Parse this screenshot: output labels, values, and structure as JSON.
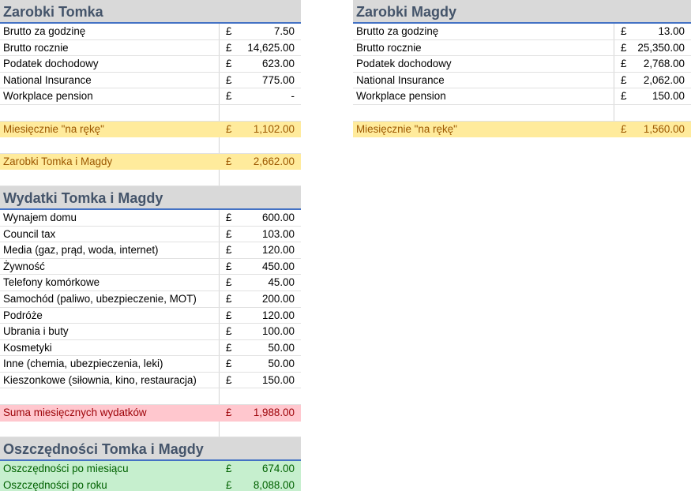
{
  "colors": {
    "header_bg": "#d9d9d9",
    "header_text": "#44546a",
    "accent": "#4472c4",
    "yellow_bg": "#ffeb9c",
    "yellow_text": "#9c5700",
    "pink_bg": "#ffc7ce",
    "pink_text": "#9c0006",
    "green_bg": "#c6efce",
    "green_text": "#006100"
  },
  "left": {
    "sections": [
      {
        "title": "Zarobki Tomka",
        "rows": [
          {
            "label": "Brutto za godzinę",
            "currency": "£",
            "value": "7.50"
          },
          {
            "label": "Brutto rocznie",
            "currency": "£",
            "value": "14,625.00"
          },
          {
            "label": "Podatek dochodowy",
            "currency": "£",
            "value": "623.00"
          },
          {
            "label": "National Insurance",
            "currency": "£",
            "value": "775.00"
          },
          {
            "label": "Workplace pension",
            "currency": "£",
            "value": "-"
          },
          {
            "label": "",
            "currency": "",
            "value": ""
          },
          {
            "label": "Miesięcznie \"na rękę\"",
            "currency": "£",
            "value": "1,102.00",
            "style": "yellow"
          },
          {
            "label": "",
            "currency": "",
            "value": ""
          },
          {
            "label": "Zarobki Tomka i Magdy",
            "currency": "£",
            "value": "2,662.00",
            "style": "yellow"
          },
          {
            "label": "",
            "currency": "",
            "value": ""
          }
        ]
      },
      {
        "title": "Wydatki Tomka i Magdy",
        "rows": [
          {
            "label": "Wynajem domu",
            "currency": "£",
            "value": "600.00"
          },
          {
            "label": "Council tax",
            "currency": "£",
            "value": "103.00"
          },
          {
            "label": "Media (gaz, prąd, woda, internet)",
            "currency": "£",
            "value": "120.00"
          },
          {
            "label": "Żywność",
            "currency": "£",
            "value": "450.00"
          },
          {
            "label": "Telefony komórkowe",
            "currency": "£",
            "value": "45.00"
          },
          {
            "label": "Samochód (paliwo, ubezpieczenie, MOT)",
            "currency": "£",
            "value": "200.00"
          },
          {
            "label": "Podróże",
            "currency": "£",
            "value": "120.00"
          },
          {
            "label": "Ubrania i buty",
            "currency": "£",
            "value": "100.00"
          },
          {
            "label": "Kosmetyki",
            "currency": "£",
            "value": "50.00"
          },
          {
            "label": "Inne (chemia, ubezpieczenia, leki)",
            "currency": "£",
            "value": "50.00"
          },
          {
            "label": "Kieszonkowe (siłownia, kino, restauracja)",
            "currency": "£",
            "value": "150.00"
          },
          {
            "label": "",
            "currency": "",
            "value": ""
          },
          {
            "label": "Suma miesięcznych wydatków",
            "currency": "£",
            "value": "1,988.00",
            "style": "pink"
          },
          {
            "label": "",
            "currency": "",
            "value": ""
          }
        ]
      },
      {
        "title": "Oszczędności Tomka i Magdy",
        "rows": [
          {
            "label": "Oszczędności po miesiącu",
            "currency": "£",
            "value": "674.00",
            "style": "green"
          },
          {
            "label": "Oszczędności po roku",
            "currency": "£",
            "value": "8,088.00",
            "style": "green"
          }
        ]
      }
    ]
  },
  "right": {
    "sections": [
      {
        "title": "Zarobki Magdy",
        "rows": [
          {
            "label": "Brutto za godzinę",
            "currency": "£",
            "value": "13.00"
          },
          {
            "label": "Brutto rocznie",
            "currency": "£",
            "value": "25,350.00"
          },
          {
            "label": "Podatek dochodowy",
            "currency": "£",
            "value": "2,768.00"
          },
          {
            "label": "National Insurance",
            "currency": "£",
            "value": "2,062.00"
          },
          {
            "label": "Workplace pension",
            "currency": "£",
            "value": "150.00"
          },
          {
            "label": "",
            "currency": "",
            "value": ""
          },
          {
            "label": "Miesięcznie \"na rękę\"",
            "currency": "£",
            "value": "1,560.00",
            "style": "yellow"
          }
        ]
      }
    ]
  }
}
